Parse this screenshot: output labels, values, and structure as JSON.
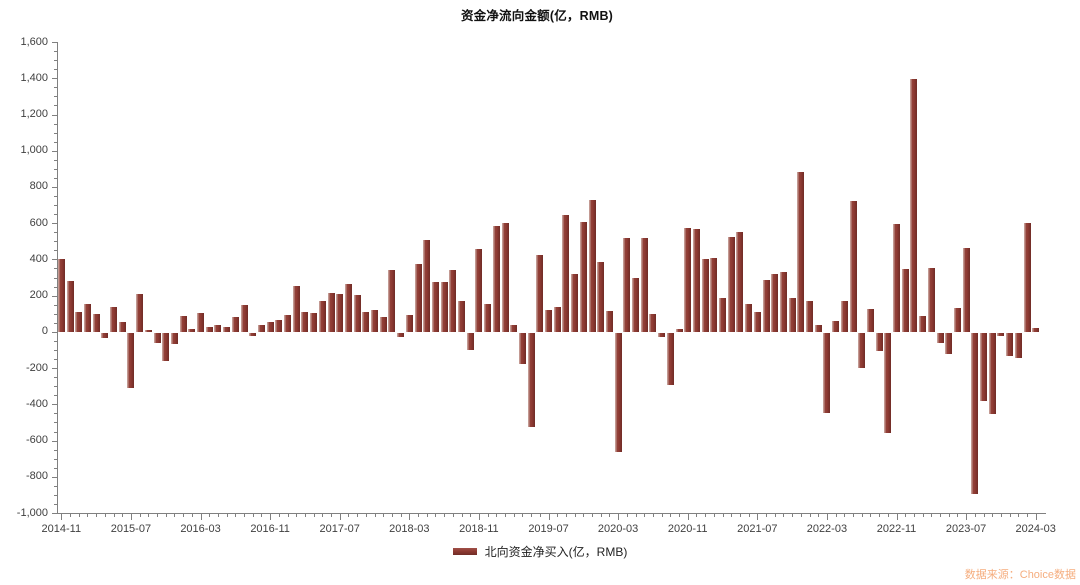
{
  "chart_data": {
    "type": "bar",
    "title": "资金净流向金额(亿，RMB)",
    "legend": "北向资金净买入(亿，RMB)",
    "legend_position": "bottom",
    "grid": false,
    "bar_color": "#8e3a32",
    "ylim": [
      -1000,
      1600
    ],
    "y_tick_step": 200,
    "y_minor_tick_step": 50,
    "y_tick_labels": [
      "1,600",
      "1,400",
      "1,200",
      "1,000",
      "800",
      "600",
      "400",
      "200",
      "0",
      "-200",
      "-400",
      "-600",
      "-800",
      "-1,000"
    ],
    "x_tick_every": 8,
    "x_tick_labels": [
      "2014-11",
      "2015-07",
      "2016-03",
      "2016-11",
      "2017-07",
      "2018-03",
      "2018-11",
      "2019-07",
      "2020-03",
      "2020-11",
      "2021-07",
      "2022-03",
      "2022-11",
      "2023-07",
      "2024-03"
    ],
    "categories": [
      "2014-11",
      "2014-12",
      "2015-01",
      "2015-02",
      "2015-03",
      "2015-04",
      "2015-05",
      "2015-06",
      "2015-07",
      "2015-08",
      "2015-09",
      "2015-10",
      "2015-11",
      "2015-12",
      "2016-01",
      "2016-02",
      "2016-03",
      "2016-04",
      "2016-05",
      "2016-06",
      "2016-07",
      "2016-08",
      "2016-09",
      "2016-10",
      "2016-11",
      "2016-12",
      "2017-01",
      "2017-02",
      "2017-03",
      "2017-04",
      "2017-05",
      "2017-06",
      "2017-07",
      "2017-08",
      "2017-09",
      "2017-10",
      "2017-11",
      "2017-12",
      "2018-01",
      "2018-02",
      "2018-03",
      "2018-04",
      "2018-05",
      "2018-06",
      "2018-07",
      "2018-08",
      "2018-09",
      "2018-10",
      "2018-11",
      "2018-12",
      "2019-01",
      "2019-02",
      "2019-03",
      "2019-04",
      "2019-05",
      "2019-06",
      "2019-07",
      "2019-08",
      "2019-09",
      "2019-10",
      "2019-11",
      "2019-12",
      "2020-01",
      "2020-02",
      "2020-03",
      "2020-04",
      "2020-05",
      "2020-06",
      "2020-07",
      "2020-08",
      "2020-09",
      "2020-10",
      "2020-11",
      "2020-12",
      "2021-01",
      "2021-02",
      "2021-03",
      "2021-04",
      "2021-05",
      "2021-06",
      "2021-07",
      "2021-08",
      "2021-09",
      "2021-10",
      "2021-11",
      "2021-12",
      "2022-01",
      "2022-02",
      "2022-03",
      "2022-04",
      "2022-05",
      "2022-06",
      "2022-07",
      "2022-08",
      "2022-09",
      "2022-10",
      "2022-11",
      "2022-12",
      "2023-01",
      "2023-02",
      "2023-03",
      "2023-04",
      "2023-05",
      "2023-06",
      "2023-07",
      "2023-08",
      "2023-09",
      "2023-10",
      "2023-11",
      "2023-12",
      "2024-01",
      "2024-02",
      "2024-03"
    ],
    "values": [
      400,
      280,
      110,
      152,
      97,
      -31,
      140,
      53,
      -303,
      211,
      13,
      -55,
      -156,
      -61,
      86,
      15,
      107,
      28,
      40,
      28,
      83,
      147,
      -18,
      37,
      55,
      68,
      92,
      252,
      110,
      105,
      169,
      215,
      211,
      264,
      202,
      110,
      119,
      83,
      342,
      -24,
      92,
      376,
      505,
      275,
      275,
      340,
      169,
      -97,
      459,
      152,
      585,
      600,
      37,
      -171,
      -523,
      425,
      120,
      135,
      646,
      321,
      606,
      726,
      386,
      118,
      -660,
      520,
      295,
      520,
      100,
      -24,
      -290,
      18,
      575,
      570,
      400,
      410,
      188,
      525,
      552,
      155,
      112,
      285,
      320,
      328,
      188,
      885,
      168,
      40,
      -441,
      61,
      170,
      725,
      -197,
      128,
      -100,
      -551,
      595,
      345,
      1397,
      90,
      351,
      -55,
      -120,
      132,
      463,
      -891,
      -377,
      -446,
      -18,
      -129,
      -141,
      600,
      22
    ]
  },
  "source": "数据来源：Choice数据"
}
